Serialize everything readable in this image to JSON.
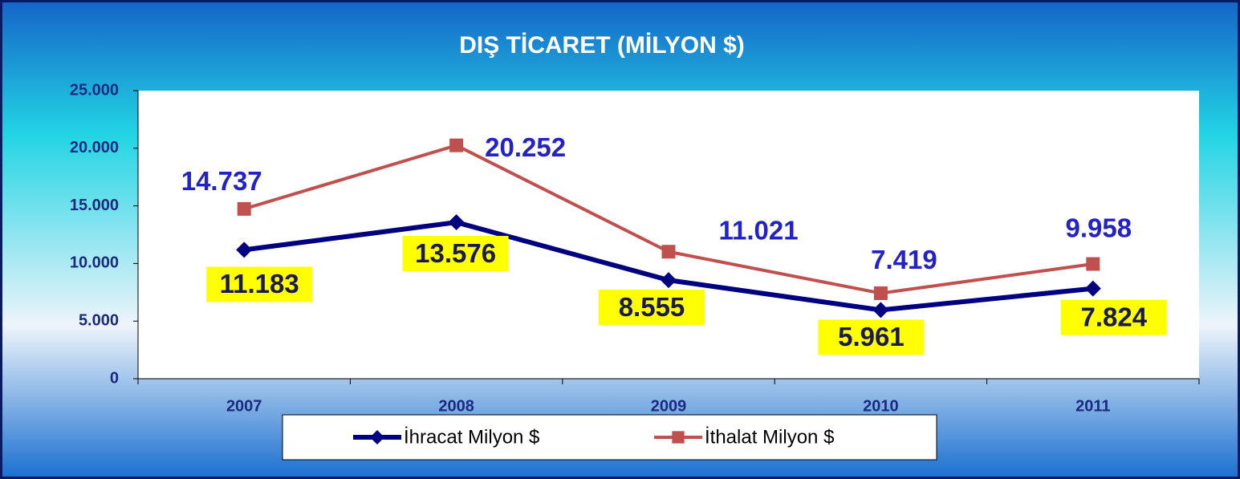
{
  "chart_data": {
    "type": "line",
    "title": "DIŞ TİCARET (MİLYON $)",
    "categories": [
      "2007",
      "2008",
      "2009",
      "2010",
      "2011"
    ],
    "series": [
      {
        "name": "İhracat Milyon $",
        "color": "#000080",
        "marker": "diamond",
        "values": [
          11183,
          13576,
          8555,
          5961,
          7824
        ],
        "value_labels": [
          "11.183",
          "13.576",
          "8.555",
          "5.961",
          "7.824"
        ]
      },
      {
        "name": "İthalat Milyon $",
        "color": "#c0504d",
        "marker": "square",
        "values": [
          14737,
          20252,
          11021,
          7419,
          9958
        ],
        "value_labels": [
          "14.737",
          "20.252",
          "11.021",
          "7.419",
          "9.958"
        ]
      }
    ],
    "ylim": [
      0,
      25000
    ],
    "yticks": [
      0,
      {
        "value": 5000,
        "label": "5.000"
      },
      {
        "value": 10000,
        "label": "10.000"
      },
      {
        "value": 15000,
        "label": "15.000"
      },
      {
        "value": 20000,
        "label": "20.000"
      },
      {
        "value": 25000,
        "label": "25.000"
      }
    ],
    "legend": "bottom"
  }
}
